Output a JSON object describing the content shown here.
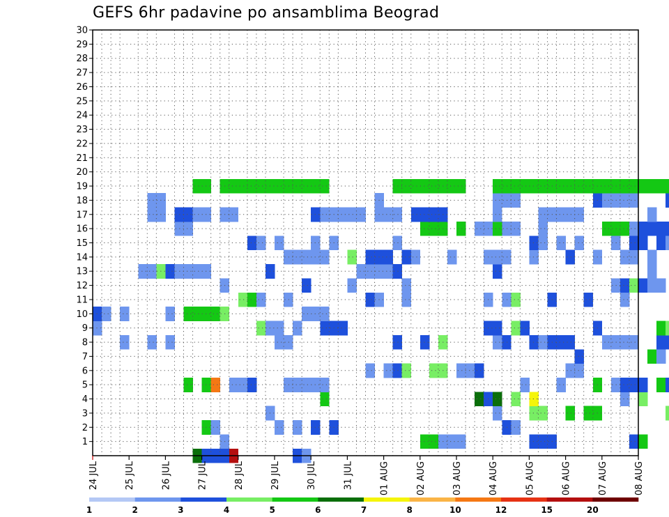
{
  "chart_data": {
    "type": "heatmap",
    "title": "GEFS 6hr padavine po ansamblima Beograd",
    "x_tick_labels": [
      "24 JUL",
      "25 JUL",
      "26 JUL",
      "27 JUL",
      "28 JUL",
      "29 JUL",
      "30 JUL",
      "31 JUL",
      "01 AUG",
      "02 AUG",
      "03 AUG",
      "04 AUG",
      "05 AUG",
      "06 AUG",
      "07 AUG",
      "08 AUG"
    ],
    "y_tick_labels": [
      "1",
      "2",
      "3",
      "4",
      "5",
      "6",
      "7",
      "8",
      "9",
      "10",
      "11",
      "12",
      "13",
      "14",
      "15",
      "16",
      "17",
      "18",
      "19",
      "20",
      "21",
      "22",
      "23",
      "24",
      "25",
      "26",
      "27",
      "28",
      "29",
      "30"
    ],
    "y_range": [
      0,
      30
    ],
    "x_range_steps": [
      0,
      60
    ],
    "grid": true,
    "colorbar": {
      "levels": [
        1,
        2,
        3,
        4,
        5,
        6,
        7,
        8,
        10,
        12,
        15,
        20
      ],
      "labels": [
        "1",
        "2",
        "3",
        "4",
        "5",
        "6",
        "7",
        "8",
        "10",
        "12",
        "15",
        "20"
      ],
      "colors": [
        "#b4c8f5",
        "#6e96ee",
        "#1e50dc",
        "#78ee64",
        "#14c814",
        "#0a6e0a",
        "#f5f50a",
        "#fab446",
        "#f57814",
        "#e63214",
        "#b40f0f",
        "#6e0000"
      ]
    },
    "cells": [
      [
        0,
        11,
        5
      ],
      [
        0,
        12,
        2
      ],
      [
        0,
        13,
        2
      ],
      [
        0,
        14,
        2
      ],
      [
        0,
        15,
        10
      ],
      [
        0,
        22,
        2
      ],
      [
        0,
        23,
        1
      ],
      [
        1,
        14,
        1
      ],
      [
        1,
        36,
        4
      ],
      [
        1,
        37,
        4
      ],
      [
        1,
        38,
        1
      ],
      [
        1,
        39,
        1
      ],
      [
        1,
        40,
        1
      ],
      [
        1,
        48,
        2
      ],
      [
        1,
        49,
        2
      ],
      [
        1,
        50,
        2
      ],
      [
        1,
        59,
        2
      ],
      [
        1,
        60,
        4
      ],
      [
        2,
        12,
        4
      ],
      [
        2,
        13,
        1
      ],
      [
        2,
        20,
        1
      ],
      [
        2,
        22,
        1
      ],
      [
        2,
        24,
        2
      ],
      [
        2,
        26,
        2
      ],
      [
        2,
        45,
        2
      ],
      [
        2,
        46,
        1
      ],
      [
        3,
        19,
        1
      ],
      [
        3,
        44,
        1
      ],
      [
        3,
        48,
        3
      ],
      [
        3,
        49,
        3
      ],
      [
        3,
        52,
        4
      ],
      [
        3,
        54,
        4
      ],
      [
        3,
        55,
        4
      ],
      [
        3,
        63,
        3
      ],
      [
        4,
        25,
        4
      ],
      [
        4,
        42,
        5
      ],
      [
        4,
        43,
        2
      ],
      [
        4,
        44,
        5
      ],
      [
        4,
        46,
        3
      ],
      [
        4,
        48,
        6
      ],
      [
        4,
        58,
        1
      ],
      [
        4,
        60,
        3
      ],
      [
        5,
        10,
        4
      ],
      [
        5,
        12,
        4
      ],
      [
        5,
        13,
        8
      ],
      [
        5,
        15,
        1
      ],
      [
        5,
        16,
        1
      ],
      [
        5,
        17,
        2
      ],
      [
        5,
        21,
        1
      ],
      [
        5,
        22,
        1
      ],
      [
        5,
        23,
        1
      ],
      [
        5,
        24,
        1
      ],
      [
        5,
        25,
        1
      ],
      [
        5,
        47,
        1
      ],
      [
        5,
        51,
        1
      ],
      [
        5,
        55,
        4
      ],
      [
        5,
        57,
        1
      ],
      [
        5,
        58,
        2
      ],
      [
        5,
        59,
        2
      ],
      [
        5,
        60,
        2
      ],
      [
        5,
        62,
        4
      ],
      [
        5,
        63,
        2
      ],
      [
        6,
        30,
        1
      ],
      [
        6,
        32,
        1
      ],
      [
        6,
        33,
        2
      ],
      [
        6,
        34,
        3
      ],
      [
        6,
        37,
        3
      ],
      [
        6,
        38,
        3
      ],
      [
        6,
        40,
        1
      ],
      [
        6,
        41,
        1
      ],
      [
        6,
        42,
        2
      ],
      [
        6,
        52,
        1
      ],
      [
        6,
        53,
        1
      ],
      [
        7,
        53,
        2
      ],
      [
        7,
        61,
        4
      ],
      [
        7,
        62,
        1
      ],
      [
        8,
        3,
        1
      ],
      [
        8,
        6,
        1
      ],
      [
        8,
        8,
        1
      ],
      [
        8,
        20,
        1
      ],
      [
        8,
        21,
        1
      ],
      [
        8,
        33,
        2
      ],
      [
        8,
        36,
        2
      ],
      [
        8,
        38,
        3
      ],
      [
        8,
        44,
        1
      ],
      [
        8,
        45,
        2
      ],
      [
        8,
        48,
        2
      ],
      [
        8,
        49,
        1
      ],
      [
        8,
        50,
        2
      ],
      [
        8,
        51,
        2
      ],
      [
        8,
        52,
        2
      ],
      [
        8,
        56,
        1
      ],
      [
        8,
        57,
        1
      ],
      [
        8,
        58,
        1
      ],
      [
        8,
        59,
        1
      ],
      [
        8,
        62,
        2
      ],
      [
        8,
        63,
        2
      ],
      [
        9,
        0,
        1
      ],
      [
        9,
        18,
        3
      ],
      [
        9,
        19,
        1
      ],
      [
        9,
        20,
        1
      ],
      [
        9,
        22,
        1
      ],
      [
        9,
        25,
        2
      ],
      [
        9,
        26,
        2
      ],
      [
        9,
        27,
        2
      ],
      [
        9,
        43,
        2
      ],
      [
        9,
        44,
        2
      ],
      [
        9,
        46,
        3
      ],
      [
        9,
        47,
        2
      ],
      [
        9,
        55,
        2
      ],
      [
        9,
        62,
        4
      ],
      [
        9,
        63,
        3
      ],
      [
        10,
        0,
        2
      ],
      [
        10,
        1,
        1
      ],
      [
        10,
        3,
        1
      ],
      [
        10,
        8,
        1
      ],
      [
        10,
        10,
        4
      ],
      [
        10,
        11,
        4
      ],
      [
        10,
        12,
        4
      ],
      [
        10,
        13,
        4
      ],
      [
        10,
        14,
        3
      ],
      [
        10,
        23,
        1
      ],
      [
        10,
        24,
        1
      ],
      [
        10,
        25,
        1
      ],
      [
        11,
        16,
        3
      ],
      [
        11,
        17,
        4
      ],
      [
        11,
        18,
        1
      ],
      [
        11,
        21,
        1
      ],
      [
        11,
        30,
        2
      ],
      [
        11,
        31,
        1
      ],
      [
        11,
        34,
        1
      ],
      [
        11,
        43,
        1
      ],
      [
        11,
        45,
        1
      ],
      [
        11,
        46,
        3
      ],
      [
        11,
        50,
        2
      ],
      [
        11,
        54,
        2
      ],
      [
        11,
        58,
        1
      ],
      [
        12,
        14,
        1
      ],
      [
        12,
        23,
        2
      ],
      [
        12,
        28,
        1
      ],
      [
        12,
        34,
        1
      ],
      [
        12,
        57,
        1
      ],
      [
        12,
        58,
        2
      ],
      [
        12,
        59,
        3
      ],
      [
        12,
        60,
        2
      ],
      [
        12,
        61,
        1
      ],
      [
        12,
        62,
        1
      ],
      [
        13,
        5,
        1
      ],
      [
        13,
        6,
        1
      ],
      [
        13,
        7,
        3
      ],
      [
        13,
        8,
        2
      ],
      [
        13,
        9,
        1
      ],
      [
        13,
        10,
        1
      ],
      [
        13,
        11,
        1
      ],
      [
        13,
        12,
        1
      ],
      [
        13,
        19,
        2
      ],
      [
        13,
        29,
        1
      ],
      [
        13,
        30,
        1
      ],
      [
        13,
        31,
        1
      ],
      [
        13,
        32,
        1
      ],
      [
        13,
        33,
        2
      ],
      [
        13,
        44,
        2
      ],
      [
        13,
        61,
        1
      ],
      [
        14,
        21,
        1
      ],
      [
        14,
        22,
        1
      ],
      [
        14,
        23,
        1
      ],
      [
        14,
        24,
        1
      ],
      [
        14,
        25,
        1
      ],
      [
        14,
        28,
        3
      ],
      [
        14,
        30,
        2
      ],
      [
        14,
        31,
        2
      ],
      [
        14,
        32,
        2
      ],
      [
        14,
        34,
        2
      ],
      [
        14,
        35,
        1
      ],
      [
        14,
        39,
        1
      ],
      [
        14,
        43,
        1
      ],
      [
        14,
        44,
        1
      ],
      [
        14,
        45,
        1
      ],
      [
        14,
        48,
        1
      ],
      [
        14,
        52,
        2
      ],
      [
        14,
        55,
        1
      ],
      [
        14,
        58,
        1
      ],
      [
        14,
        59,
        1
      ],
      [
        14,
        61,
        1
      ],
      [
        15,
        17,
        2
      ],
      [
        15,
        18,
        1
      ],
      [
        15,
        20,
        1
      ],
      [
        15,
        24,
        1
      ],
      [
        15,
        26,
        1
      ],
      [
        15,
        33,
        1
      ],
      [
        15,
        48,
        2
      ],
      [
        15,
        49,
        1
      ],
      [
        15,
        51,
        1
      ],
      [
        15,
        53,
        1
      ],
      [
        15,
        57,
        1
      ],
      [
        15,
        59,
        2
      ],
      [
        15,
        60,
        2
      ],
      [
        15,
        62,
        2
      ],
      [
        15,
        63,
        1
      ],
      [
        16,
        9,
        1
      ],
      [
        16,
        10,
        1
      ],
      [
        16,
        36,
        4
      ],
      [
        16,
        37,
        4
      ],
      [
        16,
        38,
        4
      ],
      [
        16,
        40,
        4
      ],
      [
        16,
        42,
        1
      ],
      [
        16,
        43,
        1
      ],
      [
        16,
        44,
        4
      ],
      [
        16,
        45,
        1
      ],
      [
        16,
        46,
        1
      ],
      [
        16,
        49,
        1
      ],
      [
        16,
        56,
        4
      ],
      [
        16,
        57,
        4
      ],
      [
        16,
        58,
        4
      ],
      [
        16,
        59,
        1
      ],
      [
        16,
        60,
        2
      ],
      [
        16,
        61,
        2
      ],
      [
        16,
        62,
        2
      ],
      [
        16,
        63,
        2
      ],
      [
        17,
        6,
        1
      ],
      [
        17,
        7,
        1
      ],
      [
        17,
        9,
        2
      ],
      [
        17,
        10,
        2
      ],
      [
        17,
        11,
        1
      ],
      [
        17,
        12,
        1
      ],
      [
        17,
        14,
        1
      ],
      [
        17,
        15,
        1
      ],
      [
        17,
        24,
        2
      ],
      [
        17,
        25,
        1
      ],
      [
        17,
        26,
        1
      ],
      [
        17,
        27,
        1
      ],
      [
        17,
        28,
        1
      ],
      [
        17,
        29,
        1
      ],
      [
        17,
        31,
        1
      ],
      [
        17,
        32,
        1
      ],
      [
        17,
        33,
        1
      ],
      [
        17,
        35,
        2
      ],
      [
        17,
        36,
        2
      ],
      [
        17,
        37,
        2
      ],
      [
        17,
        38,
        2
      ],
      [
        17,
        44,
        1
      ],
      [
        17,
        49,
        1
      ],
      [
        17,
        50,
        1
      ],
      [
        17,
        51,
        1
      ],
      [
        17,
        52,
        1
      ],
      [
        17,
        53,
        1
      ],
      [
        17,
        61,
        1
      ],
      [
        18,
        6,
        1
      ],
      [
        18,
        7,
        1
      ],
      [
        18,
        31,
        1
      ],
      [
        18,
        44,
        1
      ],
      [
        18,
        45,
        1
      ],
      [
        18,
        46,
        1
      ],
      [
        18,
        55,
        2
      ],
      [
        18,
        56,
        1
      ],
      [
        18,
        57,
        1
      ],
      [
        18,
        58,
        1
      ],
      [
        18,
        59,
        1
      ],
      [
        18,
        63,
        2
      ],
      [
        19,
        11,
        4
      ],
      [
        19,
        12,
        4
      ],
      [
        19,
        14,
        4
      ],
      [
        19,
        15,
        4
      ],
      [
        19,
        16,
        4
      ],
      [
        19,
        17,
        4
      ],
      [
        19,
        18,
        4
      ],
      [
        19,
        19,
        4
      ],
      [
        19,
        20,
        4
      ],
      [
        19,
        21,
        4
      ],
      [
        19,
        22,
        4
      ],
      [
        19,
        23,
        4
      ],
      [
        19,
        24,
        4
      ],
      [
        19,
        25,
        4
      ],
      [
        19,
        33,
        4
      ],
      [
        19,
        34,
        4
      ],
      [
        19,
        35,
        4
      ],
      [
        19,
        36,
        4
      ],
      [
        19,
        37,
        4
      ],
      [
        19,
        38,
        4
      ],
      [
        19,
        39,
        4
      ],
      [
        19,
        40,
        4
      ],
      [
        19,
        44,
        4
      ],
      [
        19,
        45,
        4
      ],
      [
        19,
        46,
        4
      ],
      [
        19,
        47,
        4
      ],
      [
        19,
        48,
        4
      ],
      [
        19,
        49,
        4
      ],
      [
        19,
        50,
        4
      ],
      [
        19,
        51,
        4
      ],
      [
        19,
        52,
        4
      ],
      [
        19,
        53,
        4
      ],
      [
        19,
        54,
        4
      ],
      [
        19,
        55,
        4
      ],
      [
        19,
        56,
        4
      ],
      [
        19,
        57,
        4
      ],
      [
        19,
        58,
        4
      ],
      [
        19,
        59,
        4
      ],
      [
        19,
        60,
        4
      ],
      [
        19,
        61,
        4
      ],
      [
        19,
        62,
        4
      ],
      [
        19,
        63,
        4
      ]
    ]
  }
}
